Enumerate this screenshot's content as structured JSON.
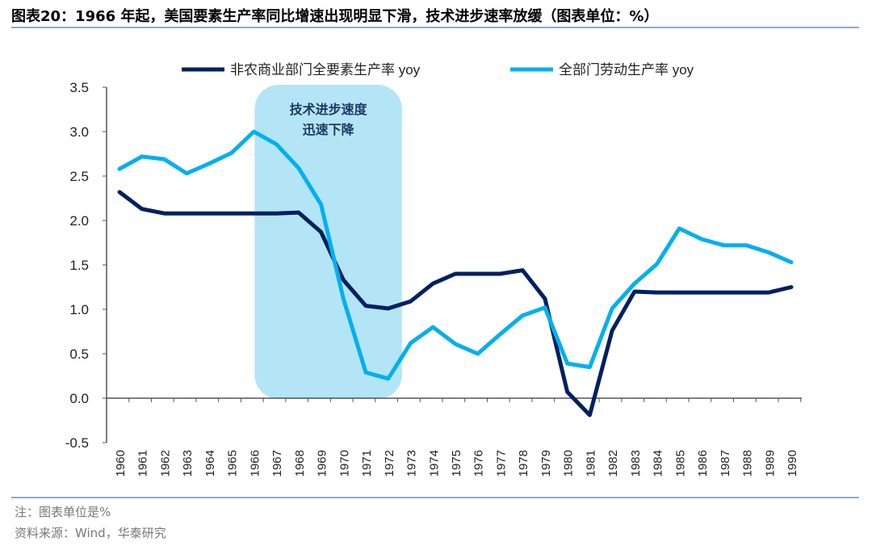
{
  "title": "图表20：1966 年起，美国要素生产率同比增速出现明显下滑，技术进步速率放缓（图表单位：%）",
  "footer": {
    "note": "注：图表单位是%",
    "source": "资料来源：Wind，华泰研究"
  },
  "colors": {
    "series1": "#002060",
    "series2": "#00b0f0",
    "highlight": "#b3e5f7",
    "rule": "#8fa9cf"
  },
  "chart_data": {
    "type": "line",
    "x": [
      1960,
      1961,
      1962,
      1963,
      1964,
      1965,
      1966,
      1967,
      1968,
      1969,
      1970,
      1971,
      1972,
      1973,
      1974,
      1975,
      1976,
      1977,
      1978,
      1979,
      1980,
      1981,
      1982,
      1983,
      1984,
      1985,
      1986,
      1987,
      1988,
      1989,
      1990
    ],
    "series": [
      {
        "name": "非农商业部门全要素生产率 yoy",
        "color": "#002060",
        "values": [
          2.32,
          2.13,
          2.08,
          2.08,
          2.08,
          2.08,
          2.08,
          2.08,
          2.09,
          1.87,
          1.33,
          1.04,
          1.01,
          1.09,
          1.29,
          1.4,
          1.4,
          1.4,
          1.44,
          1.12,
          0.07,
          -0.19,
          0.76,
          1.2,
          1.19,
          1.19,
          1.19,
          1.19,
          1.19,
          1.19,
          1.25
        ]
      },
      {
        "name": "全部门劳动生产率 yoy",
        "color": "#00b0f0",
        "values": [
          2.58,
          2.72,
          2.69,
          2.53,
          2.64,
          2.76,
          3.0,
          2.86,
          2.59,
          2.18,
          1.12,
          0.29,
          0.22,
          0.62,
          0.8,
          0.61,
          0.5,
          0.72,
          0.93,
          1.02,
          0.39,
          0.35,
          1.01,
          1.29,
          1.51,
          1.91,
          1.79,
          1.72,
          1.72,
          1.64,
          1.53
        ]
      }
    ],
    "ylim": [
      -0.5,
      3.5
    ],
    "yticks": [
      "-0.5",
      "0.0",
      "0.5",
      "1.0",
      "1.5",
      "2.0",
      "2.5",
      "3.0",
      "3.5"
    ],
    "grid": false,
    "legend": "top",
    "annotation": {
      "lines": [
        "技术进步速度",
        "迅速下降"
      ],
      "x_range": [
        1966,
        1972
      ]
    }
  }
}
